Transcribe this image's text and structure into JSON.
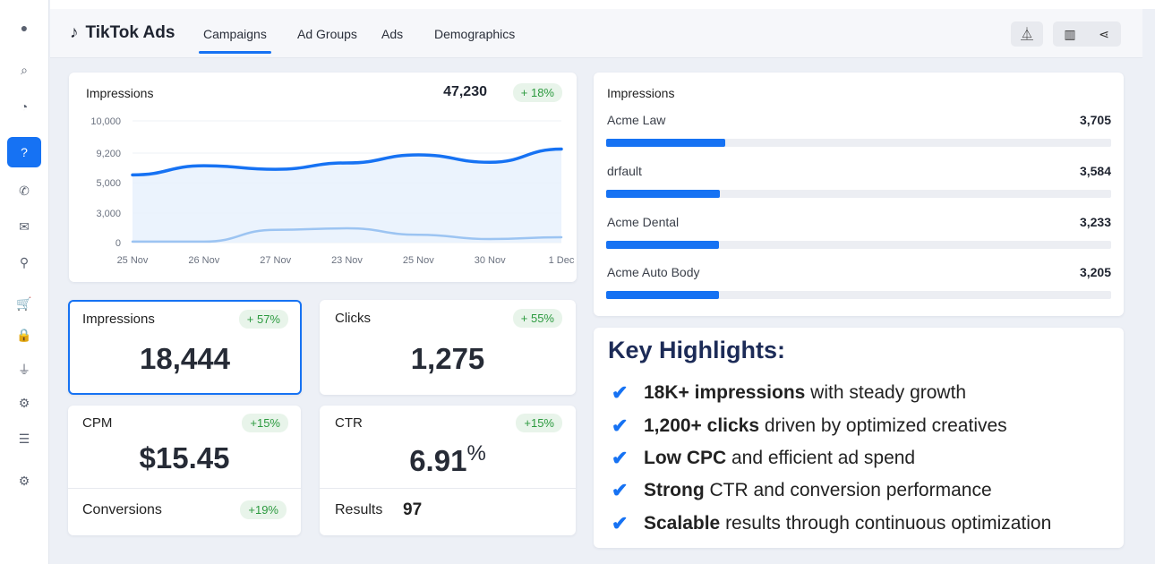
{
  "sidebar": {
    "items": [
      {
        "icon": "user-icon",
        "glyph": "●"
      },
      {
        "icon": "search-icon",
        "glyph": "⌕"
      },
      {
        "icon": "clock-icon",
        "glyph": "◔"
      },
      {
        "icon": "help-icon",
        "glyph": "?",
        "active": true
      },
      {
        "icon": "phone-icon",
        "glyph": "✆"
      },
      {
        "icon": "mail-icon",
        "glyph": "✉"
      },
      {
        "icon": "location-icon",
        "glyph": "⚲"
      },
      {
        "icon": "cart-icon",
        "glyph": "🛒"
      },
      {
        "icon": "lock-icon",
        "glyph": "🔒"
      },
      {
        "icon": "plug-icon",
        "glyph": "⏚"
      },
      {
        "icon": "settings-icon",
        "glyph": "⚙"
      },
      {
        "icon": "list-icon",
        "glyph": "☰"
      },
      {
        "icon": "gear-icon",
        "glyph": "⚙"
      }
    ]
  },
  "header": {
    "app_title": "TikTok Ads",
    "tabs": [
      "Campaigns",
      "Ad Groups",
      "Ads",
      "Demographics"
    ],
    "active_tab": "Campaigns"
  },
  "chart_data": {
    "type": "area",
    "title": "Impressions",
    "total": "47,230",
    "change": "+ 18%",
    "x": [
      "25 Nov",
      "26 Nov",
      "27 Nov",
      "23 Nov",
      "25 Nov",
      "30 Nov",
      "1 Dec"
    ],
    "y_ticks": [
      "10,000",
      "9,200",
      "5,000",
      "3,000",
      "0"
    ],
    "series": [
      {
        "values": [
          6100,
          7400,
          6900,
          7800,
          8950,
          7900,
          9300
        ],
        "color": "#1672f3"
      },
      {
        "values": [
          100,
          100,
          1300,
          1450,
          800,
          360,
          550
        ],
        "color": "#9cc4f2"
      }
    ],
    "grid": true
  },
  "breakdown": {
    "title": "Impressions",
    "rows": [
      {
        "name": "Acme Law",
        "value": "3,705",
        "fill": 23.5
      },
      {
        "name": "drfault",
        "value": "3,584",
        "fill": 22.6
      },
      {
        "name": "Acme Dental",
        "value": "3,233",
        "fill": 22.4
      },
      {
        "name": "Acme Auto Body",
        "value": "3,205",
        "fill": 22.4
      }
    ]
  },
  "kpis": {
    "impressions": {
      "label": "Impressions",
      "value": "18,444",
      "change": "+ 57%"
    },
    "clicks": {
      "label": "Clicks",
      "value": "1,275",
      "change": "+ 55%"
    },
    "cpm": {
      "label": "CPM",
      "value": "$15.45",
      "change": "+15%"
    },
    "ctr": {
      "label": "CTR",
      "value": "6.91",
      "unit": "%",
      "change": "+15%"
    },
    "conversions": {
      "label": "Conversions",
      "change": "+19%"
    },
    "results": {
      "label": "Results",
      "value": "97"
    }
  },
  "highlights": {
    "title": "Key Highlights:",
    "items": [
      {
        "bold": "18K+ impressions",
        "rest": " with steady growth"
      },
      {
        "bold": "1,200+ clicks",
        "rest": " driven by optimized creatives"
      },
      {
        "bold": "Low CPC",
        "rest": " and efficient ad spend"
      },
      {
        "bold": "Strong",
        "rest": " CTR and conversion performance"
      },
      {
        "bold": "Scalable",
        "rest": " results through continuous optimization"
      }
    ]
  }
}
